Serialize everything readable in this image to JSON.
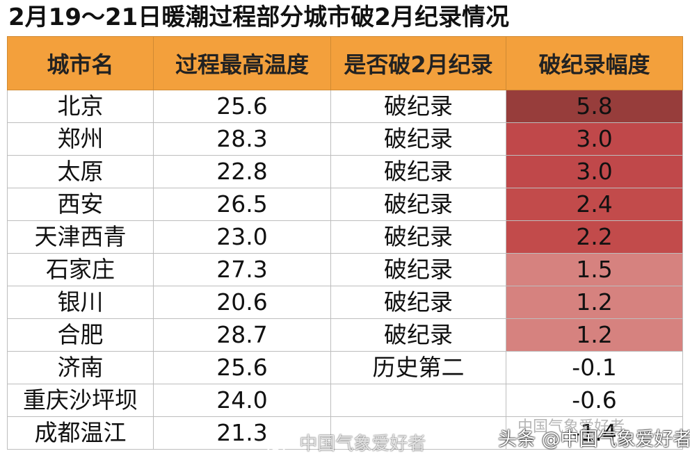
{
  "title": "2月19～21日暖潮过程部分城市破2月纪录情况",
  "table": {
    "headers": [
      "城市名",
      "过程最高温度",
      "是否破2月纪录",
      "破纪录幅度"
    ],
    "rows": [
      {
        "city": "北京",
        "max_temp": "25.6",
        "record": "破纪录",
        "margin": "5.8",
        "color": "#973d3b"
      },
      {
        "city": "郑州",
        "max_temp": "28.3",
        "record": "破纪录",
        "margin": "3.0",
        "color": "#c0484a"
      },
      {
        "city": "太原",
        "max_temp": "22.8",
        "record": "破纪录",
        "margin": "3.0",
        "color": "#c0484a"
      },
      {
        "city": "西安",
        "max_temp": "26.5",
        "record": "破纪录",
        "margin": "2.4",
        "color": "#c24b4b"
      },
      {
        "city": "天津西青",
        "max_temp": "23.0",
        "record": "破纪录",
        "margin": "2.2",
        "color": "#c24b4b"
      },
      {
        "city": "石家庄",
        "max_temp": "27.3",
        "record": "破纪录",
        "margin": "1.5",
        "color": "#d6827f"
      },
      {
        "city": "银川",
        "max_temp": "20.6",
        "record": "破纪录",
        "margin": "1.2",
        "color": "#d6827f"
      },
      {
        "city": "合肥",
        "max_temp": "28.7",
        "record": "破纪录",
        "margin": "1.2",
        "color": "#d6827f"
      },
      {
        "city": "济南",
        "max_temp": "25.6",
        "record": "历史第二",
        "margin": "-0.1",
        "color": "#ffffff"
      },
      {
        "city": "重庆沙坪坝",
        "max_temp": "24.0",
        "record": "",
        "margin": "-0.6",
        "color": "#ffffff"
      },
      {
        "city": "成都温江",
        "max_temp": "21.3",
        "record": "",
        "margin": "-1.4",
        "color": "#ffffff"
      }
    ]
  },
  "watermarks": {
    "weibo": "中国气象爱好者",
    "toutiao": "头条 @中国气象爱好者",
    "ghost": "中国气象爱好者"
  }
}
